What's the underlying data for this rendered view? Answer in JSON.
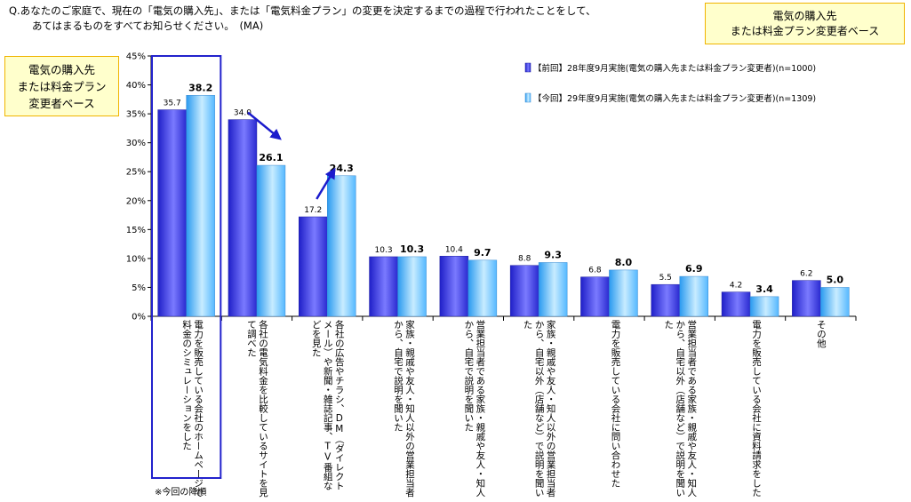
{
  "question": {
    "line1": "Q.あなたのご家庭で、現在の「電気の購入先」、または「電気料金プラン」の変更を決定するまでの過程で行われたことをして、",
    "line2": "あてはまるものをすべてお知らせください。　(MA)"
  },
  "box_right": {
    "line1": "電気の購入先",
    "line2": "または料金プラン変更者ベース"
  },
  "box_left": {
    "line1": "電気の購入先",
    "line2": "または料金プラン",
    "line3": "変更者ベース"
  },
  "note": "※今回の降順",
  "colors": {
    "prev_series": "#3333dd",
    "curr_series": "#55b8ff",
    "highlight_box": "#2222cc",
    "arrow": "#1a1acc",
    "box_fill": "#ffffcc",
    "box_border": "#f0b400"
  },
  "chart_data": {
    "type": "bar",
    "ylim": [
      0,
      45
    ],
    "yticks": [
      "0%",
      "5%",
      "10%",
      "15%",
      "20%",
      "25%",
      "30%",
      "35%",
      "40%",
      "45%"
    ],
    "grid": false,
    "legend_position": "top-right",
    "categories": [
      "電力を販売している会社のホームページで料金のシミュレーションをした",
      "各社の電気料金を比較しているサイトを見て調べた",
      "各社の広告やチラシ、DM（ダイレクトメール）や新聞・雑誌記事、TV番組などを見た",
      "家族・親戚や友人・知人以外の営業担当者から、自宅で説明を聞いた",
      "営業担当者である家族・親戚や友人・知人から、自宅で説明を聞いた",
      "家族・親戚や友人・知人以外の営業担当者から、自宅以外（店舗など）で説明を聞いた",
      "電力を販売している会社に問い合わせた",
      "営業担当者である家族・親戚や友人・知人から、自宅以外（店舗など）で説明を聞いた",
      "電力を販売している会社に資料請求をした",
      "その他"
    ],
    "series": [
      {
        "name": "【前回】28年度9月実施(電気の購入先または料金プラン変更者)(n=1000)",
        "values": [
          35.7,
          34.0,
          17.2,
          10.3,
          10.4,
          8.8,
          6.8,
          5.5,
          4.2,
          6.2
        ],
        "labels": [
          "35.7",
          "34.0",
          "17.2",
          "10.3",
          "10.4",
          "8.8",
          "6.8",
          "5.5",
          "4.2",
          "6.2"
        ]
      },
      {
        "name": "【今回】29年度9月実施(電気の購入先または料金プラン変更者)(n=1309)",
        "values": [
          38.2,
          26.1,
          24.3,
          10.3,
          9.7,
          9.3,
          8.0,
          6.9,
          3.4,
          5.0
        ],
        "labels": [
          "38.2",
          "26.1",
          "24.3",
          "10.3",
          "9.7",
          "9.3",
          "8.0",
          "6.9",
          "3.4",
          "5.0"
        ]
      }
    ],
    "annotations": {
      "highlighted_category_index": 0,
      "arrows": [
        {
          "category_index": 1,
          "direction": "down"
        },
        {
          "category_index": 2,
          "direction": "up"
        }
      ]
    }
  }
}
